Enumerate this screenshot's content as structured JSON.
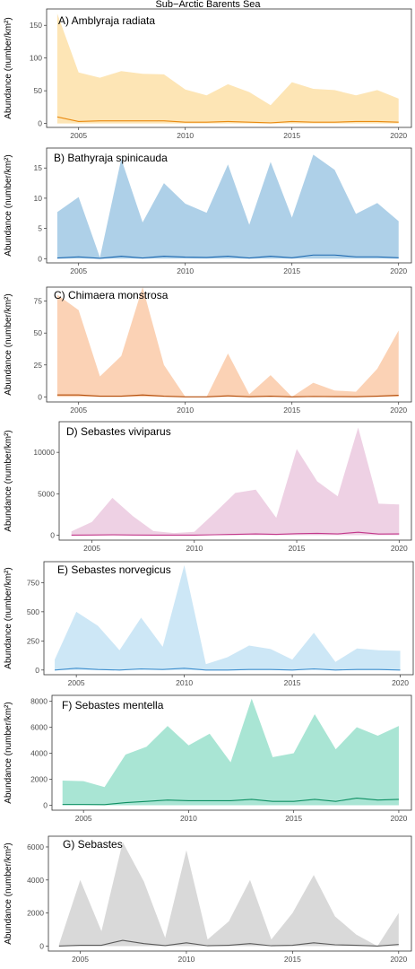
{
  "figure_title": "Sub−Arctic Barents Sea",
  "chart_data": [
    {
      "type": "area",
      "title": "A) Amblyraja radiata",
      "ylabel": "Abundance (number/km²)",
      "xlim": [
        2003.5,
        2020.6
      ],
      "ylim": [
        -6,
        175
      ],
      "xticks": [
        2005,
        2010,
        2015,
        2020
      ],
      "yticks": [
        0,
        50,
        100,
        150
      ],
      "fill_color": "#fde5b5",
      "line_color": "#e98a10",
      "x": [
        2004,
        2005,
        2006,
        2007,
        2008,
        2009,
        2010,
        2011,
        2012,
        2013,
        2014,
        2015,
        2016,
        2017,
        2018,
        2019,
        2020
      ],
      "series": [
        {
          "role": "upper",
          "values": [
            168,
            78,
            70,
            80,
            76,
            75,
            52,
            43,
            60,
            48,
            28,
            63,
            53,
            51,
            43,
            51,
            38
          ]
        },
        {
          "role": "lower",
          "values": [
            0,
            0,
            0,
            0,
            0,
            0,
            0,
            0,
            0,
            0,
            0,
            0,
            0,
            0,
            0,
            0,
            0
          ]
        },
        {
          "role": "line",
          "values": [
            10,
            3,
            4,
            4,
            4,
            4,
            2,
            2,
            3,
            2,
            1,
            3,
            2,
            2,
            3,
            3,
            2
          ]
        }
      ]
    },
    {
      "type": "area",
      "title": "B) Bathyraja spinicauda",
      "ylabel": "Abundance (number/km²)",
      "xlim": [
        2003.5,
        2020.6
      ],
      "ylim": [
        -0.7,
        18.3
      ],
      "xticks": [
        2005,
        2010,
        2015,
        2020
      ],
      "yticks": [
        0,
        5,
        10,
        15
      ],
      "fill_color": "#aed0e8",
      "line_color": "#1c68b0",
      "x": [
        2004,
        2005,
        2006,
        2007,
        2008,
        2009,
        2010,
        2011,
        2012,
        2013,
        2014,
        2015,
        2016,
        2017,
        2018,
        2019,
        2020
      ],
      "series": [
        {
          "role": "upper",
          "values": [
            7.7,
            10.2,
            0.2,
            16.5,
            6.0,
            12.5,
            9.1,
            7.6,
            15.6,
            5.6,
            16.0,
            6.8,
            17.2,
            14.7,
            7.4,
            9.2,
            6.2
          ]
        },
        {
          "role": "lower",
          "values": [
            0,
            0,
            0,
            0,
            0,
            0,
            0,
            0,
            0,
            0,
            0,
            0,
            0,
            0,
            0,
            0,
            0
          ]
        },
        {
          "role": "line",
          "values": [
            0.1,
            0.3,
            0.05,
            0.4,
            0.1,
            0.4,
            0.25,
            0.2,
            0.4,
            0.1,
            0.4,
            0.15,
            0.6,
            0.6,
            0.3,
            0.3,
            0.15
          ]
        }
      ]
    },
    {
      "type": "area",
      "title": "C) Chimaera monstrosa",
      "ylabel": "Abundance (number/km²)",
      "xlim": [
        2003.5,
        2020.6
      ],
      "ylim": [
        -4,
        86
      ],
      "xticks": [
        2005,
        2010,
        2015,
        2020
      ],
      "yticks": [
        0,
        25,
        50,
        75
      ],
      "fill_color": "#fbd2b5",
      "line_color": "#b24a05",
      "x": [
        2004,
        2005,
        2006,
        2007,
        2008,
        2009,
        2010,
        2011,
        2012,
        2013,
        2014,
        2015,
        2016,
        2017,
        2018,
        2019,
        2020
      ],
      "series": [
        {
          "role": "upper",
          "values": [
            80,
            68,
            16,
            32,
            86,
            25,
            0,
            0,
            34,
            2,
            17,
            0,
            11,
            5,
            4,
            22,
            52
          ]
        },
        {
          "role": "lower",
          "values": [
            0,
            0,
            0,
            0,
            0,
            0,
            0,
            0,
            0,
            0,
            0,
            0,
            0,
            0,
            0,
            0,
            0
          ]
        },
        {
          "role": "line",
          "values": [
            1.5,
            1.5,
            0.5,
            0.5,
            1.5,
            0.5,
            0,
            0,
            0.8,
            0.1,
            0.5,
            0,
            0.3,
            0.2,
            0.1,
            0.5,
            1.2
          ]
        }
      ]
    },
    {
      "type": "area",
      "title": "D) Sebastes viviparus",
      "ylabel": "Abundance (number/km²)",
      "xlim": [
        2003.4,
        2020.6
      ],
      "ylim": [
        -600,
        13700
      ],
      "xticks": [
        2005,
        2010,
        2015,
        2020
      ],
      "yticks": [
        0,
        5000,
        10000
      ],
      "fill_color": "#eed1e4",
      "line_color": "#c2378a",
      "x": [
        2004,
        2005,
        2006,
        2007,
        2008,
        2009,
        2010,
        2011,
        2012,
        2013,
        2014,
        2015,
        2016,
        2017,
        2018,
        2019,
        2020
      ],
      "series": [
        {
          "role": "upper",
          "values": [
            450,
            1600,
            4500,
            2300,
            500,
            250,
            400,
            2700,
            5100,
            5500,
            2100,
            10400,
            6500,
            4700,
            13000,
            3800,
            3700
          ]
        },
        {
          "role": "lower",
          "values": [
            0,
            0,
            0,
            0,
            0,
            0,
            0,
            0,
            0,
            0,
            0,
            0,
            0,
            0,
            0,
            0,
            0
          ]
        },
        {
          "role": "line",
          "values": [
            0,
            20,
            40,
            20,
            0,
            0,
            0,
            50,
            100,
            150,
            100,
            180,
            220,
            150,
            350,
            140,
            150
          ]
        }
      ]
    },
    {
      "type": "area",
      "title": "E) Sebastes norvegicus",
      "ylabel": "Abundance (number/km²)",
      "xlim": [
        2003.5,
        2020.6
      ],
      "ylim": [
        -40,
        930
      ],
      "xticks": [
        2005,
        2010,
        2015,
        2020
      ],
      "yticks": [
        0,
        250,
        500,
        750
      ],
      "fill_color": "#cde7f6",
      "line_color": "#3f8fce",
      "x": [
        2004,
        2005,
        2006,
        2007,
        2008,
        2009,
        2010,
        2011,
        2012,
        2013,
        2014,
        2015,
        2016,
        2017,
        2018,
        2019,
        2020
      ],
      "series": [
        {
          "role": "upper",
          "values": [
            90,
            500,
            380,
            170,
            450,
            200,
            900,
            50,
            110,
            210,
            180,
            90,
            320,
            70,
            185,
            170,
            165
          ]
        },
        {
          "role": "lower",
          "values": [
            0,
            0,
            0,
            0,
            0,
            0,
            0,
            0,
            0,
            0,
            0,
            0,
            0,
            0,
            0,
            0,
            0
          ]
        },
        {
          "role": "line",
          "values": [
            0,
            15,
            5,
            0,
            10,
            5,
            15,
            0,
            0,
            5,
            5,
            0,
            10,
            0,
            5,
            5,
            0
          ]
        }
      ]
    },
    {
      "type": "area",
      "title": "F) Sebastes mentella",
      "ylabel": "Abundance (number/km²)",
      "xlim": [
        2003.5,
        2020.6
      ],
      "ylim": [
        -380,
        8450
      ],
      "xticks": [
        2005,
        2010,
        2015,
        2020
      ],
      "yticks": [
        0,
        2000,
        4000,
        6000,
        8000
      ],
      "fill_color": "#a9e5d4",
      "line_color": "#0d8f62",
      "x": [
        2004,
        2005,
        2006,
        2007,
        2008,
        2009,
        2010,
        2011,
        2012,
        2013,
        2014,
        2015,
        2016,
        2017,
        2018,
        2019,
        2020
      ],
      "series": [
        {
          "role": "upper",
          "values": [
            1900,
            1850,
            1400,
            3900,
            4500,
            6100,
            4600,
            5500,
            3300,
            8200,
            3700,
            4000,
            7000,
            4300,
            6000,
            5350,
            6100
          ]
        },
        {
          "role": "lower",
          "values": [
            0,
            0,
            0,
            0,
            0,
            0,
            0,
            0,
            0,
            0,
            0,
            0,
            0,
            0,
            0,
            0,
            0
          ]
        },
        {
          "role": "line",
          "values": [
            60,
            60,
            50,
            200,
            300,
            400,
            350,
            350,
            350,
            450,
            300,
            300,
            450,
            300,
            550,
            400,
            450
          ]
        }
      ]
    },
    {
      "type": "area",
      "title": "G) Sebastes",
      "ylabel": "Abundance (number/km²)",
      "xlim": [
        2003.5,
        2020.6
      ],
      "ylim": [
        -300,
        6650
      ],
      "xticks": [
        2005,
        2010,
        2015,
        2020
      ],
      "yticks": [
        0,
        2000,
        4000,
        6000
      ],
      "fill_color": "#d9d9d9",
      "line_color": "#595959",
      "x": [
        2004,
        2005,
        2006,
        2007,
        2008,
        2009,
        2010,
        2011,
        2012,
        2013,
        2014,
        2015,
        2016,
        2017,
        2018,
        2019,
        2020
      ],
      "series": [
        {
          "role": "upper",
          "values": [
            100,
            4000,
            900,
            6300,
            3900,
            500,
            5800,
            400,
            1500,
            4000,
            400,
            2000,
            4300,
            1800,
            700,
            0,
            2000
          ]
        },
        {
          "role": "lower",
          "values": [
            0,
            0,
            0,
            0,
            0,
            0,
            0,
            0,
            0,
            0,
            0,
            0,
            0,
            0,
            0,
            0,
            0
          ]
        },
        {
          "role": "line",
          "values": [
            0,
            50,
            50,
            350,
            150,
            30,
            200,
            20,
            50,
            150,
            20,
            50,
            200,
            80,
            50,
            0,
            100
          ]
        }
      ]
    }
  ]
}
